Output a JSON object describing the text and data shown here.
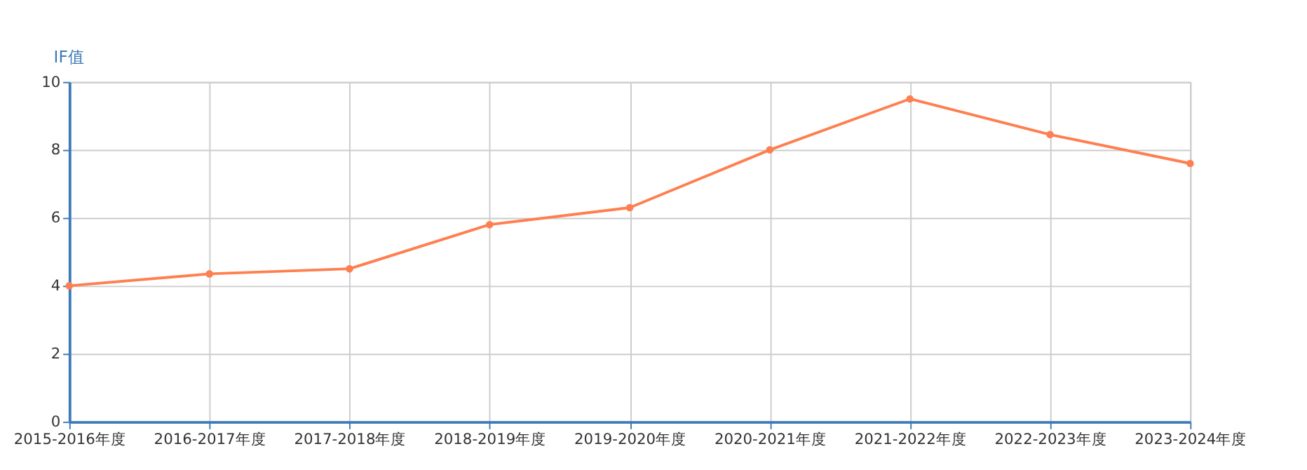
{
  "chart_data": {
    "type": "line",
    "ylabel": "IF值",
    "categories": [
      "2015-2016年度",
      "2016-2017年度",
      "2017-2018年度",
      "2018-2019年度",
      "2019-2020年度",
      "2020-2021年度",
      "2021-2022年度",
      "2022-2023年度",
      "2023-2024年度"
    ],
    "series": [
      {
        "color": "#ff7f50",
        "values": [
          4.0,
          4.35,
          4.5,
          5.8,
          6.3,
          8.0,
          9.5,
          8.45,
          7.6
        ]
      }
    ],
    "ylim": [
      0,
      10
    ],
    "yticks": [
      0,
      2,
      4,
      6,
      8,
      10
    ],
    "grid": true,
    "marker": "circle",
    "line_style": "solid"
  }
}
